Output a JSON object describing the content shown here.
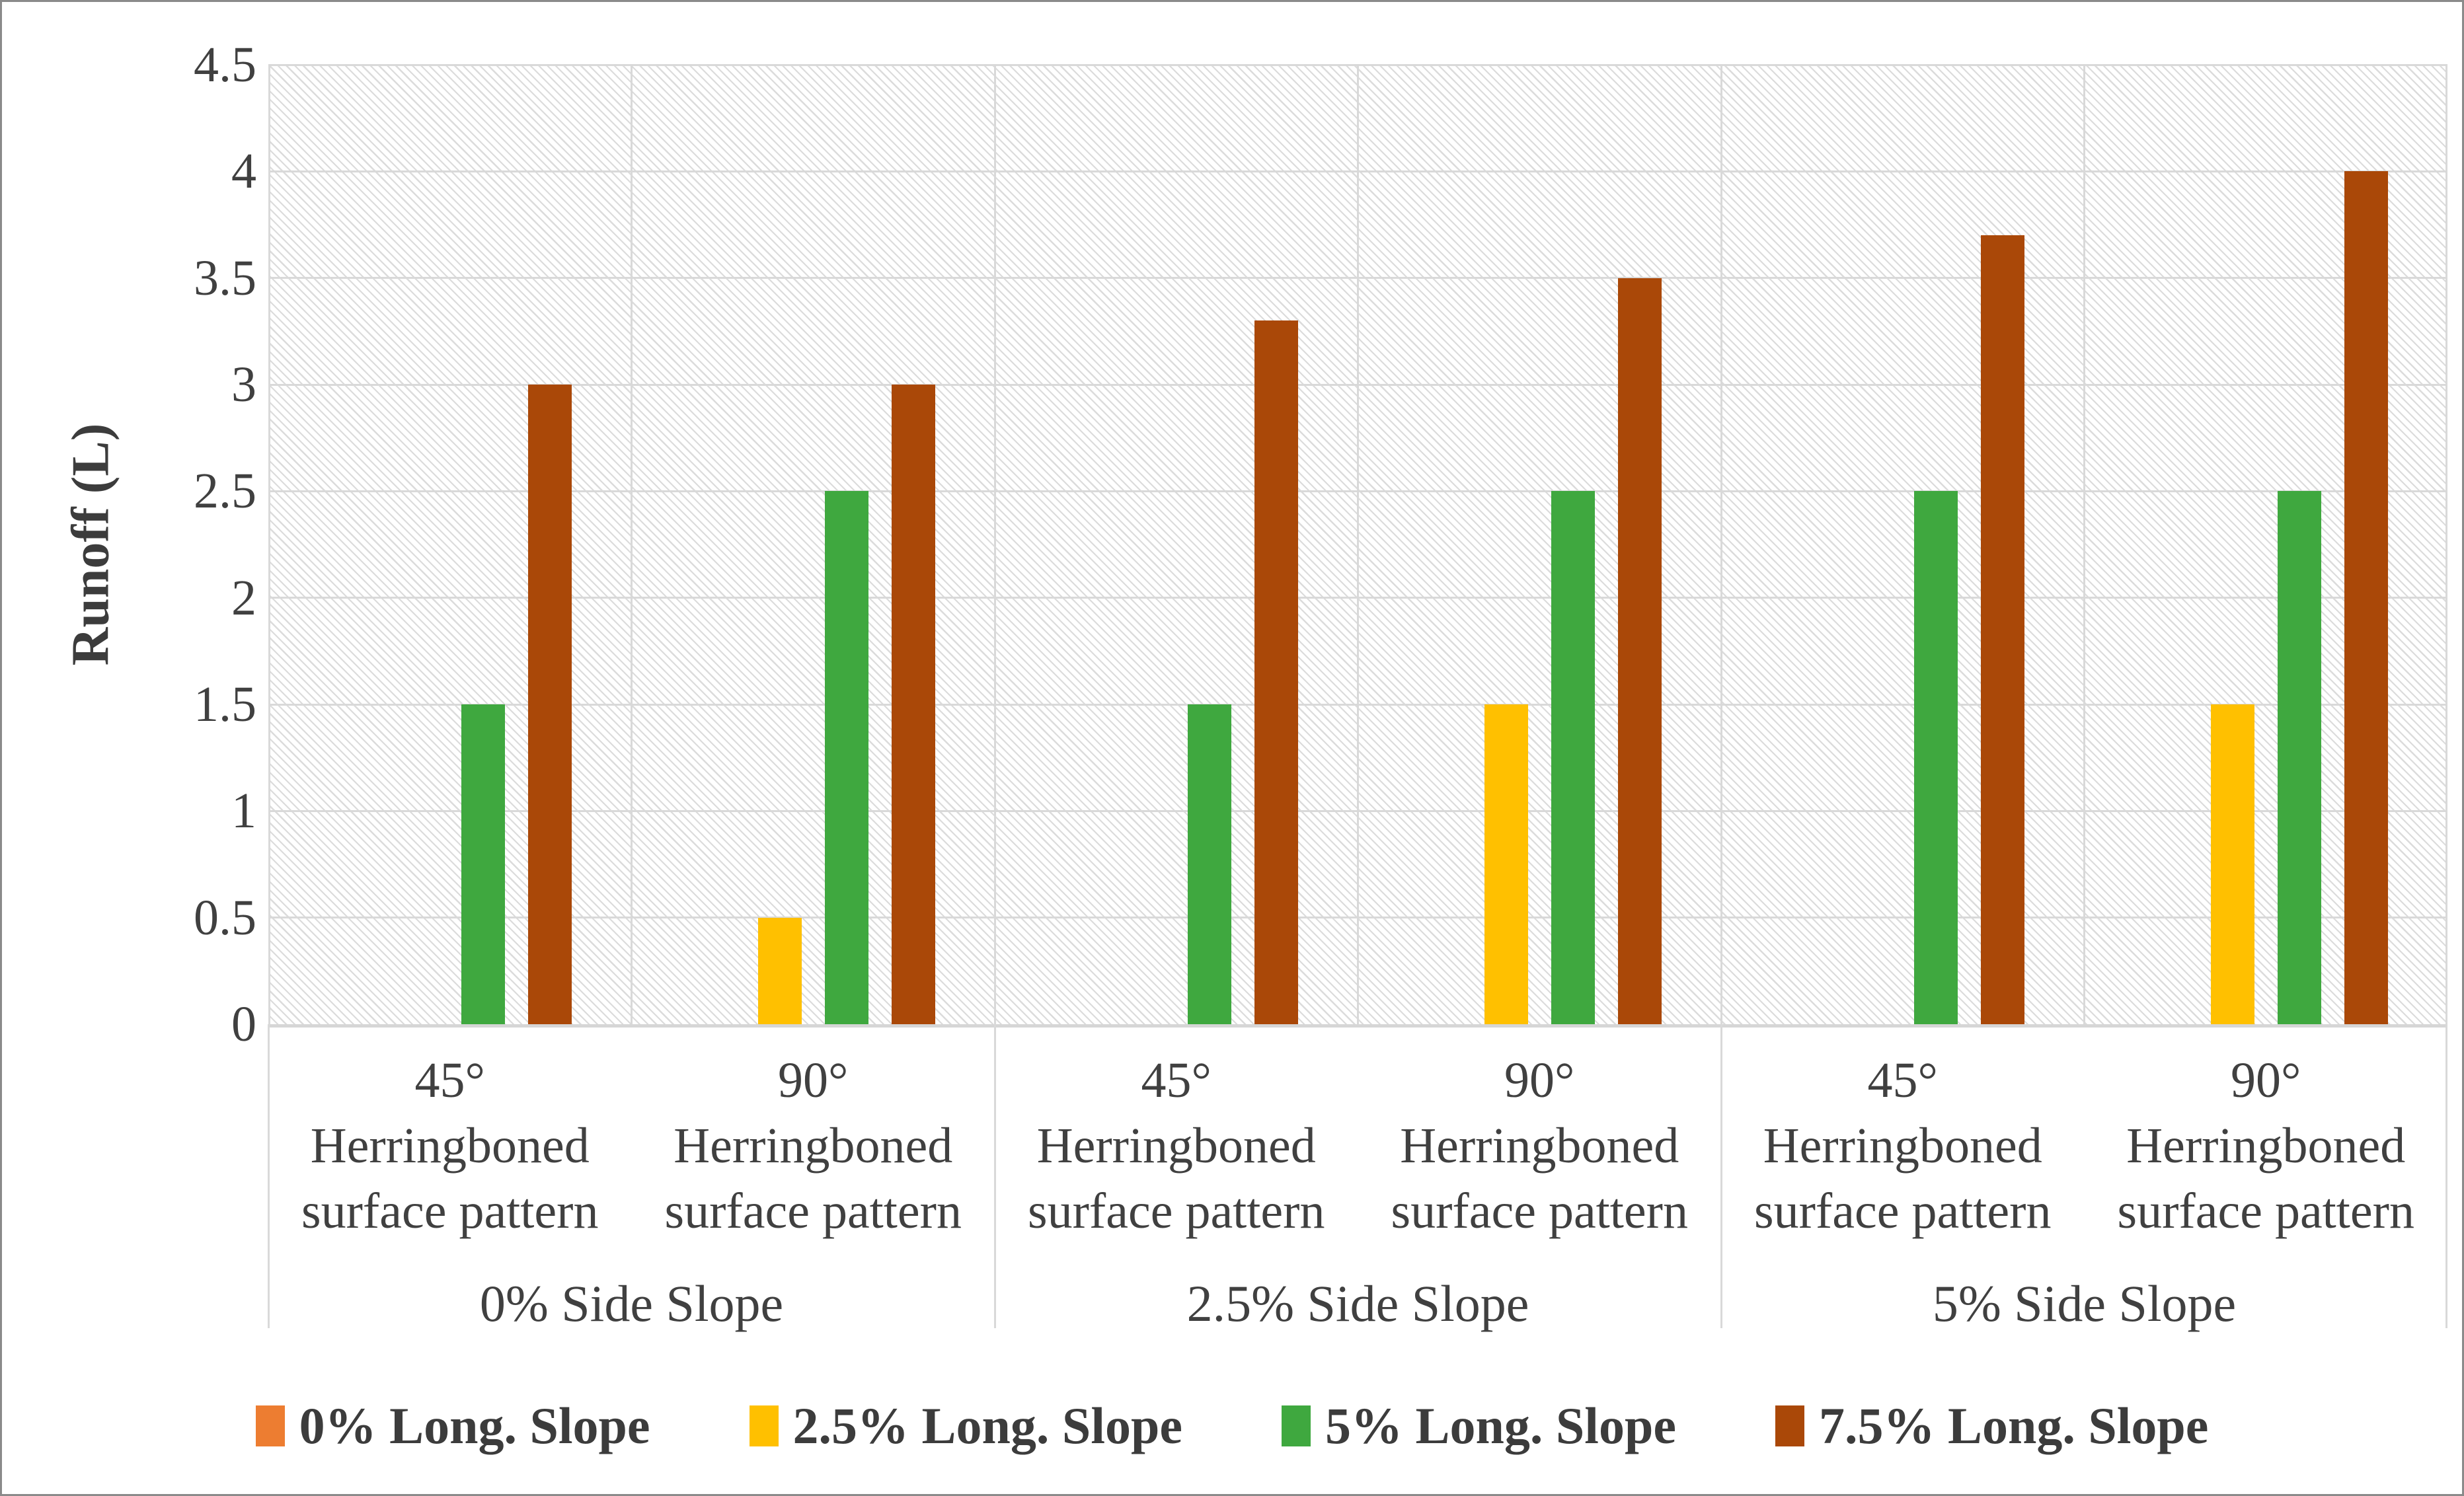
{
  "chart_data": {
    "type": "bar",
    "title": "",
    "ylabel": "Runoff (L)",
    "xlabel": "",
    "ylim": [
      0,
      4.5
    ],
    "ytick_step": 0.5,
    "ytick_labels": [
      "0",
      "0.5",
      "1",
      "1.5",
      "2",
      "2.5",
      "3",
      "3.5",
      "4",
      "4.5"
    ],
    "grid": {
      "horizontal": true,
      "vertical_at_category_boundaries": true,
      "color": "#d9d9d9"
    },
    "plot_background": "light-gray dotted downward-diagonal hatch on white",
    "legend_position": "bottom-center",
    "groups": [
      {
        "label": "0% Side Slope"
      },
      {
        "label": "2.5% Side Slope"
      },
      {
        "label": "5% Side Slope"
      }
    ],
    "categories": [
      {
        "group": "0% Side Slope",
        "lines": [
          "45°",
          "Herringboned",
          "surface pattern"
        ]
      },
      {
        "group": "0% Side Slope",
        "lines": [
          "90°",
          "Herringboned",
          "surface pattern"
        ]
      },
      {
        "group": "2.5% Side Slope",
        "lines": [
          "45°",
          "Herringboned",
          "surface pattern"
        ]
      },
      {
        "group": "2.5% Side Slope",
        "lines": [
          "90°",
          "Herringboned",
          "surface pattern"
        ]
      },
      {
        "group": "5% Side Slope",
        "lines": [
          "45°",
          "Herringboned",
          "surface pattern"
        ]
      },
      {
        "group": "5% Side Slope",
        "lines": [
          "90°",
          "Herringboned",
          "surface pattern"
        ]
      }
    ],
    "series": [
      {
        "name": "0% Long. Slope",
        "color": "#ED7D31",
        "values": [
          0,
          0,
          0,
          0,
          0,
          0
        ]
      },
      {
        "name": "2.5% Long. Slope",
        "color": "#FFC000",
        "values": [
          0,
          0.5,
          0,
          1.5,
          0,
          1.5
        ]
      },
      {
        "name": "5% Long. Slope",
        "color": "#3FA83F",
        "values": [
          1.5,
          2.5,
          1.5,
          2.5,
          2.5,
          2.5
        ]
      },
      {
        "name": "7.5% Long. Slope",
        "color": "#AA4808",
        "values": [
          3,
          3,
          3.3,
          3.5,
          3.7,
          4
        ]
      }
    ]
  },
  "style": {
    "text_color": "#3f3f3f",
    "grid_color": "#d9d9d9",
    "axis_line_color": "#d6d6d6",
    "figure_border_color": "#8a8a8a"
  }
}
